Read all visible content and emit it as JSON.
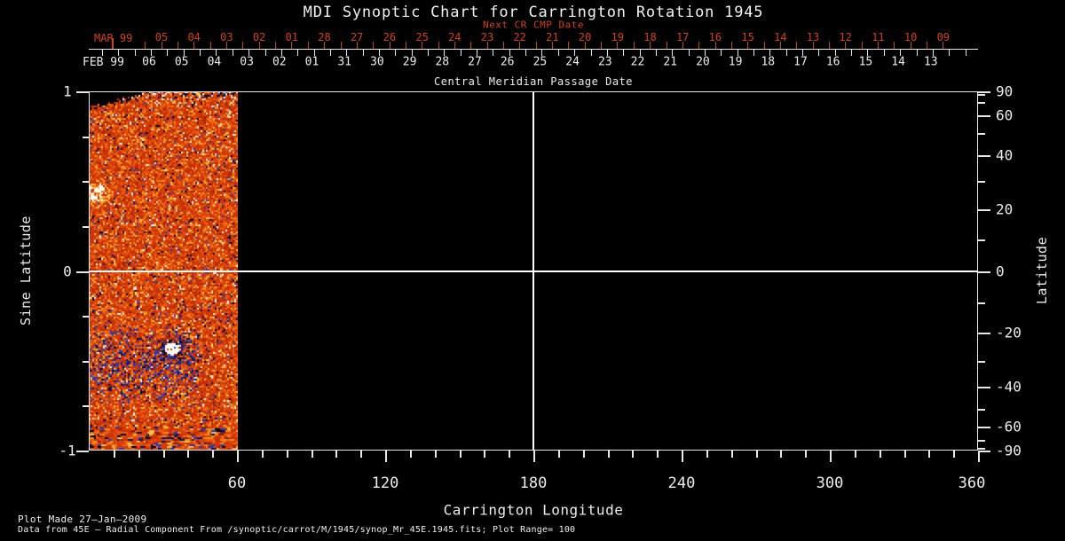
{
  "title": "MDI Synoptic Chart for Carrington Rotation 1945",
  "colors": {
    "background": "#000000",
    "foreground": "#ededed",
    "accent_red": "#d2421d",
    "crosshair": "#ffffff"
  },
  "footer": {
    "line1": "Plot Made 27–Jan–2009",
    "line2": "Data from 45E – Radial Component From /synoptic/carrot/M/1945/synop_Mr_45E.1945.fits; Plot Range=  100"
  },
  "chart_data": {
    "type": "heatmap",
    "title": "MDI Synoptic Chart for Carrington Rotation 1945",
    "plot_range_gauss": 100,
    "x_axis": {
      "label": "Carrington Longitude",
      "range": [
        0,
        360
      ],
      "major_tick_labels": [
        "60",
        "120",
        "180",
        "240",
        "300",
        "360"
      ],
      "major_tick_values": [
        60,
        120,
        180,
        240,
        300,
        360
      ],
      "minor_tick_step_deg": 10
    },
    "y_axis_left": {
      "label": "Sine Latitude",
      "range": [
        -1,
        1
      ],
      "major_tick_labels": [
        "1",
        "0",
        "-1"
      ],
      "major_tick_values": [
        1,
        0,
        -1
      ],
      "minor_tick_step": 0.25
    },
    "y_axis_right": {
      "label": "Latitude",
      "major_tick_labels": [
        "90",
        "60",
        "40",
        "20",
        "0",
        "-20",
        "-40",
        "-60",
        "-90"
      ],
      "major_tick_values": [
        90,
        60,
        40,
        20,
        0,
        -20,
        -40,
        -60,
        -90
      ],
      "minor_tick_step_deg": 10
    },
    "top_axis_next_cr": {
      "label": "Next CR CMP Date",
      "month_label": "MAR 99",
      "day_labels": [
        "05",
        "04",
        "03",
        "02",
        "01",
        "28",
        "27",
        "26",
        "25",
        "24",
        "23",
        "22",
        "21",
        "20",
        "19",
        "18",
        "17",
        "16",
        "15",
        "14",
        "13",
        "12",
        "11",
        "10",
        "09"
      ]
    },
    "top_axis_cmp": {
      "label": "Central Meridian Passage Date",
      "month_label": "FEB 99",
      "day_labels": [
        "06",
        "05",
        "04",
        "03",
        "02",
        "01",
        "31",
        "30",
        "29",
        "28",
        "27",
        "26",
        "25",
        "24",
        "23",
        "22",
        "21",
        "20",
        "19",
        "18",
        "17",
        "16",
        "15",
        "14",
        "13"
      ]
    },
    "crosshair": {
      "longitude": 180,
      "sine_latitude": 0
    },
    "data_coverage": {
      "longitude_min": 0,
      "longitude_max": 60
    },
    "features": [
      {
        "name": "bright-plage-east-limb",
        "longitude": 2.5,
        "sine_latitude": 0.44
      },
      {
        "name": "active-region-white-core",
        "longitude": 33.5,
        "sine_latitude": -0.43
      },
      {
        "name": "dark-speckle-band",
        "longitude_span": [
          0,
          45
        ],
        "sine_latitude_span": [
          -0.74,
          -0.29
        ]
      }
    ],
    "palette": {
      "base_oranges": [
        "#d8400b",
        "#c93105",
        "#ef5d12",
        "#b52a04",
        "#f08a1c"
      ],
      "brights": [
        "#f7bc45",
        "#fdf3e0",
        "#fffdf4"
      ],
      "darks": [
        "#8a1d02",
        "#233bba",
        "#0b1468",
        "#000000"
      ]
    }
  }
}
